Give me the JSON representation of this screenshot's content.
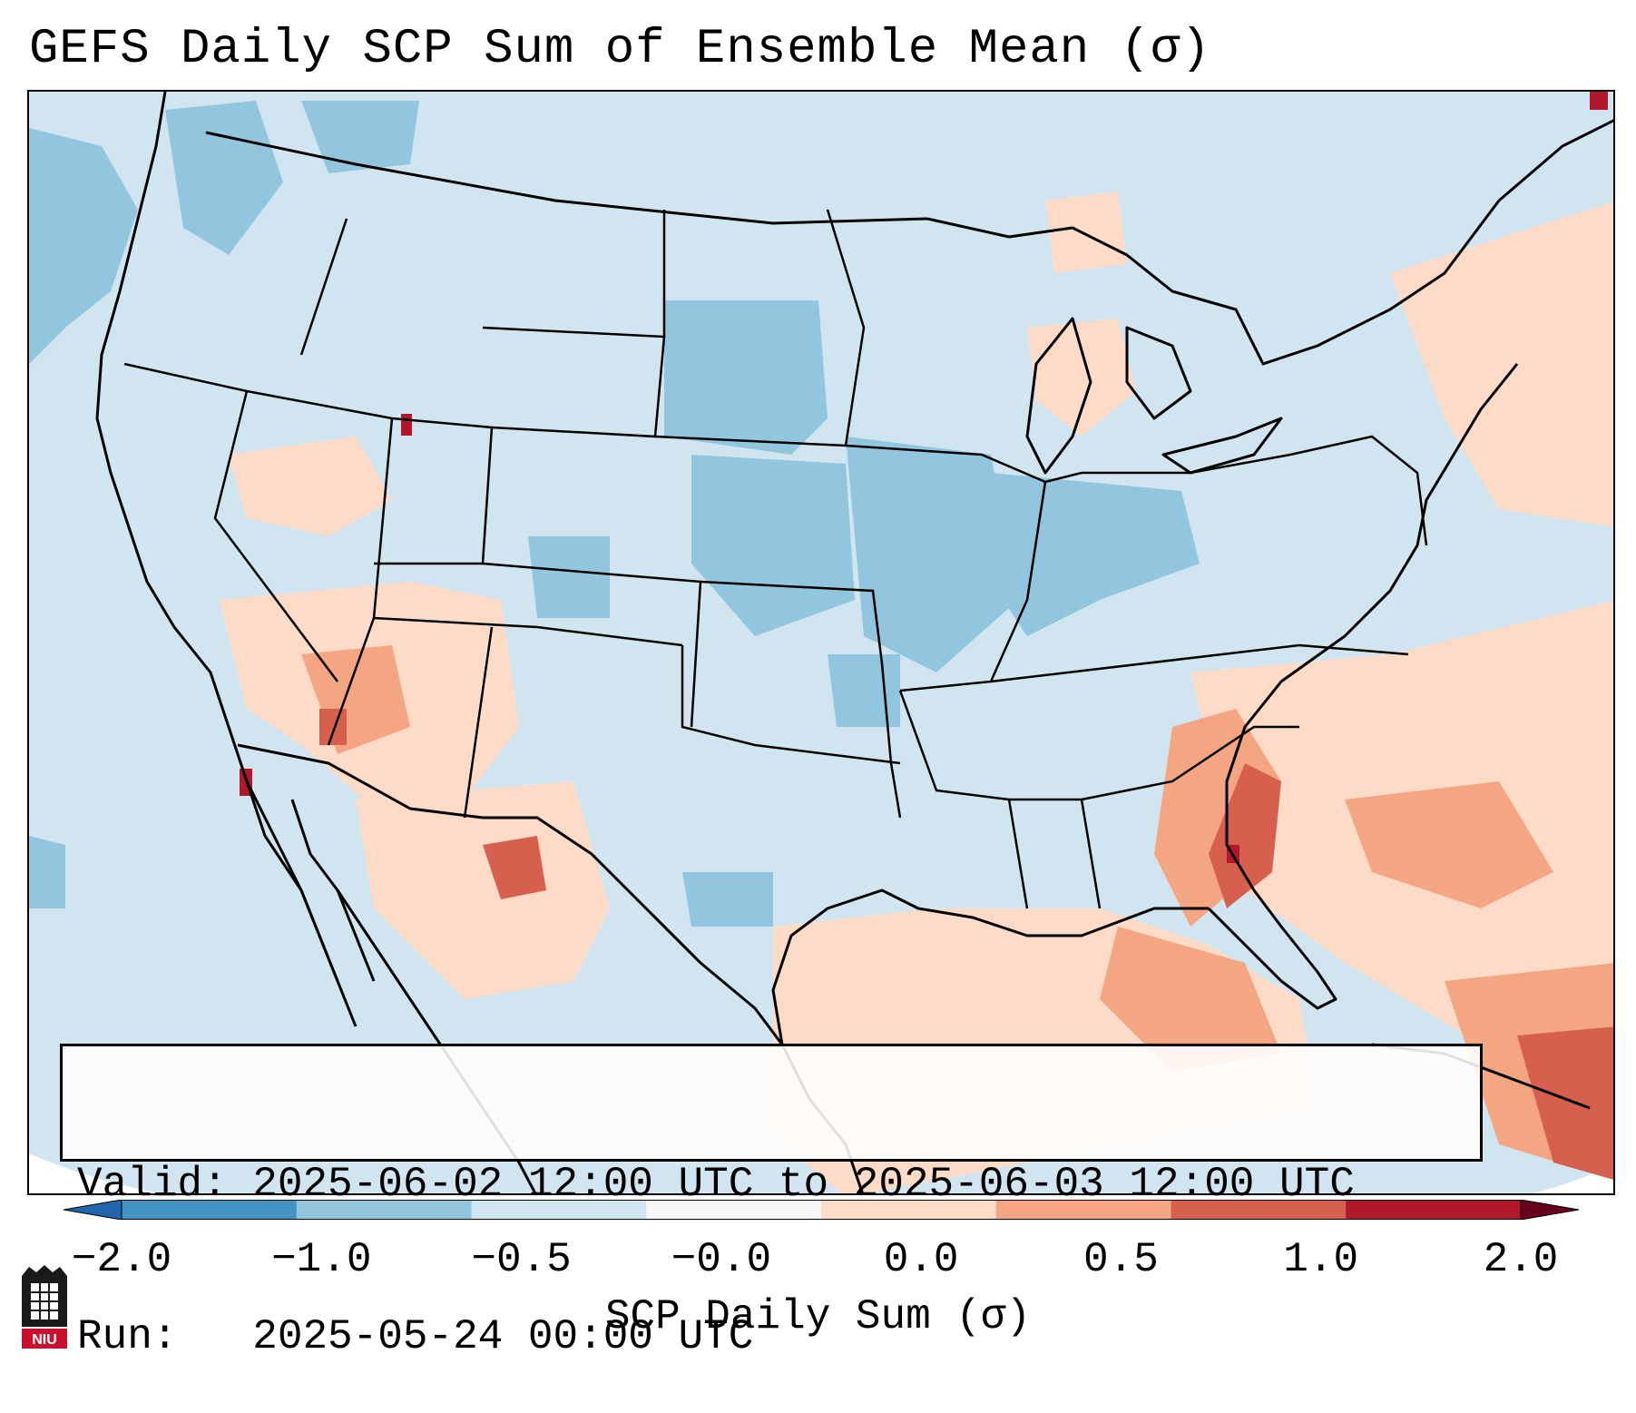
{
  "title": "GEFS Daily SCP Sum of Ensemble Mean (σ)",
  "info": {
    "valid_line": "Valid: 2025-06-02 12:00 UTC to 2025-06-03 12:00 UTC",
    "run_line": "Run:   2025-05-24 00:00 UTC"
  },
  "colorbar": {
    "label": "SCP Daily Sum (σ)",
    "ticks": [
      "−2.0",
      "−1.0",
      "−0.5",
      "−0.0",
      "0.0",
      "0.5",
      "1.0",
      "2.0"
    ],
    "colors": [
      "#4393c3",
      "#92c5de",
      "#d1e5f0",
      "#f7f7f7",
      "#fddbc7",
      "#f4a582",
      "#d6604d",
      "#b2182b"
    ],
    "extend": "both"
  },
  "logo": {
    "text": "NIU"
  },
  "colors": {
    "background_low": "#d1e5f0",
    "ocean_blank": "#ffffff",
    "boundaries": "#000000"
  }
}
